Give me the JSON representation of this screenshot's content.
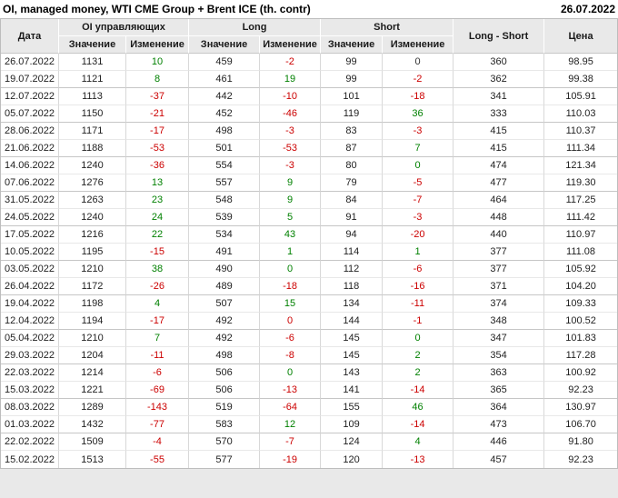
{
  "title": "OI, managed money, WTI CME Group + Brent ICE (th. contr)",
  "report_date": "26.07.2022",
  "colors": {
    "positive_change": "#008000",
    "negative_change": "#cc0000",
    "neutral_change": "#333333",
    "header_background": "#e9e9e9"
  },
  "table": {
    "col_groups": {
      "date": "Дата",
      "oi": "OI управляющих",
      "long": "Long",
      "short": "Short",
      "long_short": "Long - Short",
      "price": "Цена"
    },
    "sub_headers": {
      "value": "Значение",
      "change": "Изменение"
    },
    "rows": [
      {
        "date": "26.07.2022",
        "oi": "1131",
        "oi_chg": {
          "t": "10",
          "s": "pos"
        },
        "long": "459",
        "long_chg": {
          "t": "-2",
          "s": "neg"
        },
        "short": "99",
        "short_chg": {
          "t": "0",
          "s": "neu"
        },
        "long_short": "360",
        "price": "98.95"
      },
      {
        "date": "19.07.2022",
        "oi": "1121",
        "oi_chg": {
          "t": "8",
          "s": "pos"
        },
        "long": "461",
        "long_chg": {
          "t": "19",
          "s": "pos"
        },
        "short": "99",
        "short_chg": {
          "t": "-2",
          "s": "neg"
        },
        "long_short": "362",
        "price": "99.38"
      },
      {
        "date": "12.07.2022",
        "oi": "1113",
        "oi_chg": {
          "t": "-37",
          "s": "neg"
        },
        "long": "442",
        "long_chg": {
          "t": "-10",
          "s": "neg"
        },
        "short": "101",
        "short_chg": {
          "t": "-18",
          "s": "neg"
        },
        "long_short": "341",
        "price": "105.91"
      },
      {
        "date": "05.07.2022",
        "oi": "1150",
        "oi_chg": {
          "t": "-21",
          "s": "neg"
        },
        "long": "452",
        "long_chg": {
          "t": "-46",
          "s": "neg"
        },
        "short": "119",
        "short_chg": {
          "t": "36",
          "s": "pos"
        },
        "long_short": "333",
        "price": "110.03"
      },
      {
        "date": "28.06.2022",
        "oi": "1171",
        "oi_chg": {
          "t": "-17",
          "s": "neg"
        },
        "long": "498",
        "long_chg": {
          "t": "-3",
          "s": "neg"
        },
        "short": "83",
        "short_chg": {
          "t": "-3",
          "s": "neg"
        },
        "long_short": "415",
        "price": "110.37"
      },
      {
        "date": "21.06.2022",
        "oi": "1188",
        "oi_chg": {
          "t": "-53",
          "s": "neg"
        },
        "long": "501",
        "long_chg": {
          "t": "-53",
          "s": "neg"
        },
        "short": "87",
        "short_chg": {
          "t": "7",
          "s": "pos"
        },
        "long_short": "415",
        "price": "111.34"
      },
      {
        "date": "14.06.2022",
        "oi": "1240",
        "oi_chg": {
          "t": "-36",
          "s": "neg"
        },
        "long": "554",
        "long_chg": {
          "t": "-3",
          "s": "neg"
        },
        "short": "80",
        "short_chg": {
          "t": "0",
          "s": "pos"
        },
        "long_short": "474",
        "price": "121.34"
      },
      {
        "date": "07.06.2022",
        "oi": "1276",
        "oi_chg": {
          "t": "13",
          "s": "pos"
        },
        "long": "557",
        "long_chg": {
          "t": "9",
          "s": "pos"
        },
        "short": "79",
        "short_chg": {
          "t": "-5",
          "s": "neg"
        },
        "long_short": "477",
        "price": "119.30"
      },
      {
        "date": "31.05.2022",
        "oi": "1263",
        "oi_chg": {
          "t": "23",
          "s": "pos"
        },
        "long": "548",
        "long_chg": {
          "t": "9",
          "s": "pos"
        },
        "short": "84",
        "short_chg": {
          "t": "-7",
          "s": "neg"
        },
        "long_short": "464",
        "price": "117.25"
      },
      {
        "date": "24.05.2022",
        "oi": "1240",
        "oi_chg": {
          "t": "24",
          "s": "pos"
        },
        "long": "539",
        "long_chg": {
          "t": "5",
          "s": "pos"
        },
        "short": "91",
        "short_chg": {
          "t": "-3",
          "s": "neg"
        },
        "long_short": "448",
        "price": "111.42"
      },
      {
        "date": "17.05.2022",
        "oi": "1216",
        "oi_chg": {
          "t": "22",
          "s": "pos"
        },
        "long": "534",
        "long_chg": {
          "t": "43",
          "s": "pos"
        },
        "short": "94",
        "short_chg": {
          "t": "-20",
          "s": "neg"
        },
        "long_short": "440",
        "price": "110.97"
      },
      {
        "date": "10.05.2022",
        "oi": "1195",
        "oi_chg": {
          "t": "-15",
          "s": "neg"
        },
        "long": "491",
        "long_chg": {
          "t": "1",
          "s": "pos"
        },
        "short": "114",
        "short_chg": {
          "t": "1",
          "s": "pos"
        },
        "long_short": "377",
        "price": "111.08"
      },
      {
        "date": "03.05.2022",
        "oi": "1210",
        "oi_chg": {
          "t": "38",
          "s": "pos"
        },
        "long": "490",
        "long_chg": {
          "t": "0",
          "s": "pos"
        },
        "short": "112",
        "short_chg": {
          "t": "-6",
          "s": "neg"
        },
        "long_short": "377",
        "price": "105.92"
      },
      {
        "date": "26.04.2022",
        "oi": "1172",
        "oi_chg": {
          "t": "-26",
          "s": "neg"
        },
        "long": "489",
        "long_chg": {
          "t": "-18",
          "s": "neg"
        },
        "short": "118",
        "short_chg": {
          "t": "-16",
          "s": "neg"
        },
        "long_short": "371",
        "price": "104.20"
      },
      {
        "date": "19.04.2022",
        "oi": "1198",
        "oi_chg": {
          "t": "4",
          "s": "pos"
        },
        "long": "507",
        "long_chg": {
          "t": "15",
          "s": "pos"
        },
        "short": "134",
        "short_chg": {
          "t": "-11",
          "s": "neg"
        },
        "long_short": "374",
        "price": "109.33"
      },
      {
        "date": "12.04.2022",
        "oi": "1194",
        "oi_chg": {
          "t": "-17",
          "s": "neg"
        },
        "long": "492",
        "long_chg": {
          "t": "0",
          "s": "neg"
        },
        "short": "144",
        "short_chg": {
          "t": "-1",
          "s": "neg"
        },
        "long_short": "348",
        "price": "100.52"
      },
      {
        "date": "05.04.2022",
        "oi": "1210",
        "oi_chg": {
          "t": "7",
          "s": "pos"
        },
        "long": "492",
        "long_chg": {
          "t": "-6",
          "s": "neg"
        },
        "short": "145",
        "short_chg": {
          "t": "0",
          "s": "pos"
        },
        "long_short": "347",
        "price": "101.83"
      },
      {
        "date": "29.03.2022",
        "oi": "1204",
        "oi_chg": {
          "t": "-11",
          "s": "neg"
        },
        "long": "498",
        "long_chg": {
          "t": "-8",
          "s": "neg"
        },
        "short": "145",
        "short_chg": {
          "t": "2",
          "s": "pos"
        },
        "long_short": "354",
        "price": "117.28"
      },
      {
        "date": "22.03.2022",
        "oi": "1214",
        "oi_chg": {
          "t": "-6",
          "s": "neg"
        },
        "long": "506",
        "long_chg": {
          "t": "0",
          "s": "pos"
        },
        "short": "143",
        "short_chg": {
          "t": "2",
          "s": "pos"
        },
        "long_short": "363",
        "price": "100.92"
      },
      {
        "date": "15.03.2022",
        "oi": "1221",
        "oi_chg": {
          "t": "-69",
          "s": "neg"
        },
        "long": "506",
        "long_chg": {
          "t": "-13",
          "s": "neg"
        },
        "short": "141",
        "short_chg": {
          "t": "-14",
          "s": "neg"
        },
        "long_short": "365",
        "price": "92.23"
      },
      {
        "date": "08.03.2022",
        "oi": "1289",
        "oi_chg": {
          "t": "-143",
          "s": "neg"
        },
        "long": "519",
        "long_chg": {
          "t": "-64",
          "s": "neg"
        },
        "short": "155",
        "short_chg": {
          "t": "46",
          "s": "pos"
        },
        "long_short": "364",
        "price": "130.97"
      },
      {
        "date": "01.03.2022",
        "oi": "1432",
        "oi_chg": {
          "t": "-77",
          "s": "neg"
        },
        "long": "583",
        "long_chg": {
          "t": "12",
          "s": "pos"
        },
        "short": "109",
        "short_chg": {
          "t": "-14",
          "s": "neg"
        },
        "long_short": "473",
        "price": "106.70"
      },
      {
        "date": "22.02.2022",
        "oi": "1509",
        "oi_chg": {
          "t": "-4",
          "s": "neg"
        },
        "long": "570",
        "long_chg": {
          "t": "-7",
          "s": "neg"
        },
        "short": "124",
        "short_chg": {
          "t": "4",
          "s": "pos"
        },
        "long_short": "446",
        "price": "91.80"
      },
      {
        "date": "15.02.2022",
        "oi": "1513",
        "oi_chg": {
          "t": "-55",
          "s": "neg"
        },
        "long": "577",
        "long_chg": {
          "t": "-19",
          "s": "neg"
        },
        "short": "120",
        "short_chg": {
          "t": "-13",
          "s": "neg"
        },
        "long_short": "457",
        "price": "92.23"
      }
    ]
  }
}
